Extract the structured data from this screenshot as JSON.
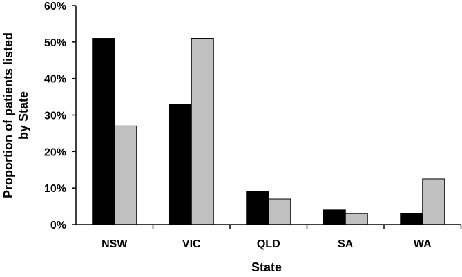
{
  "chart_data": {
    "type": "bar",
    "title": "",
    "xlabel": "State",
    "ylabel_lines": [
      "Proportion of patients listed",
      "by State"
    ],
    "categories": [
      "NSW",
      "VIC",
      "QLD",
      "SA",
      "WA"
    ],
    "series": [
      {
        "color": "#000000",
        "values": [
          51,
          33,
          9,
          4,
          3
        ]
      },
      {
        "color": "#c0c0c0",
        "values": [
          27,
          51,
          7,
          3,
          12.5
        ]
      }
    ],
    "ylim": [
      0,
      60
    ],
    "yticks": [
      0,
      10,
      20,
      30,
      40,
      50,
      60
    ],
    "ytick_labels": [
      "0%",
      "10%",
      "20%",
      "30%",
      "40%",
      "50%",
      "60%"
    ],
    "grid": false,
    "legend": "none"
  }
}
